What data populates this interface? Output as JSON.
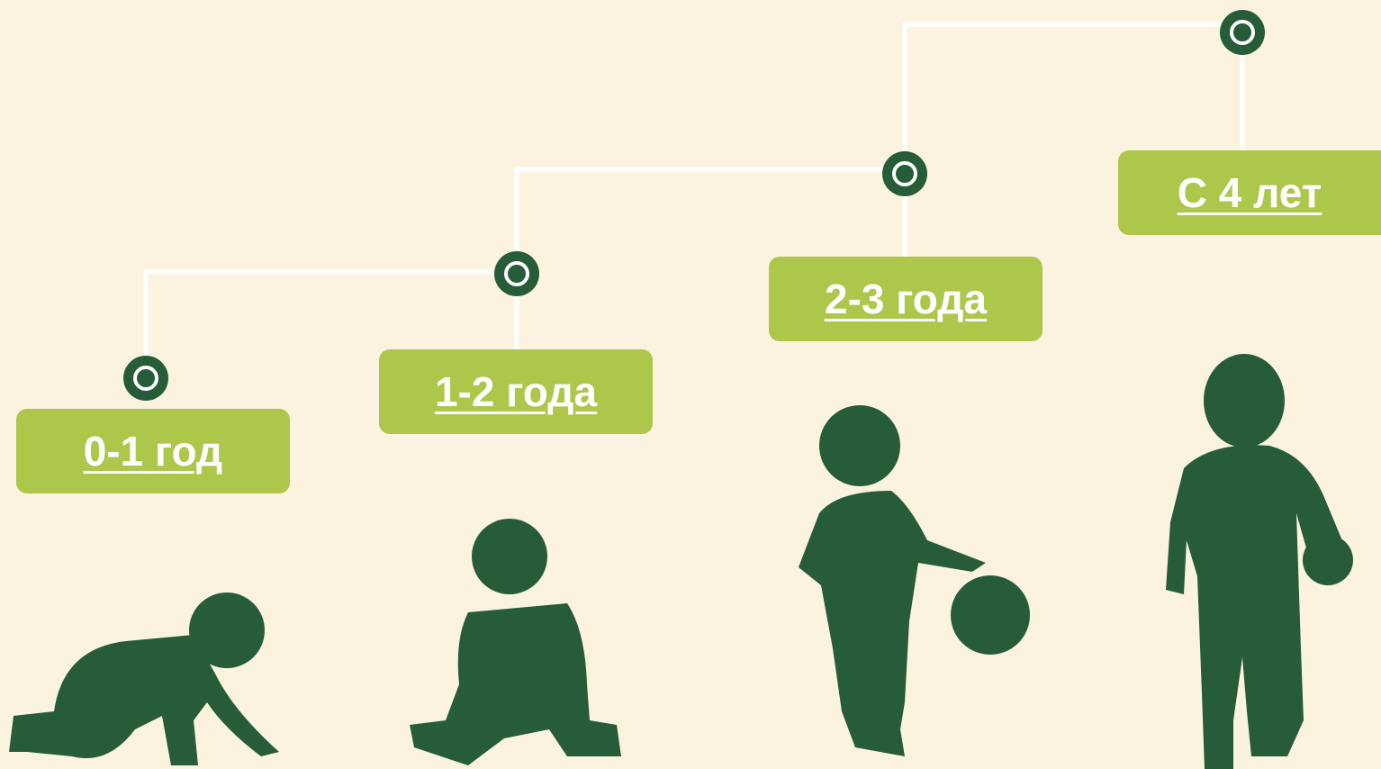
{
  "stages": [
    {
      "label": "0-1 год"
    },
    {
      "label": "1-2 года"
    },
    {
      "label": "2-3 года"
    },
    {
      "label": "С 4 лет"
    }
  ]
}
